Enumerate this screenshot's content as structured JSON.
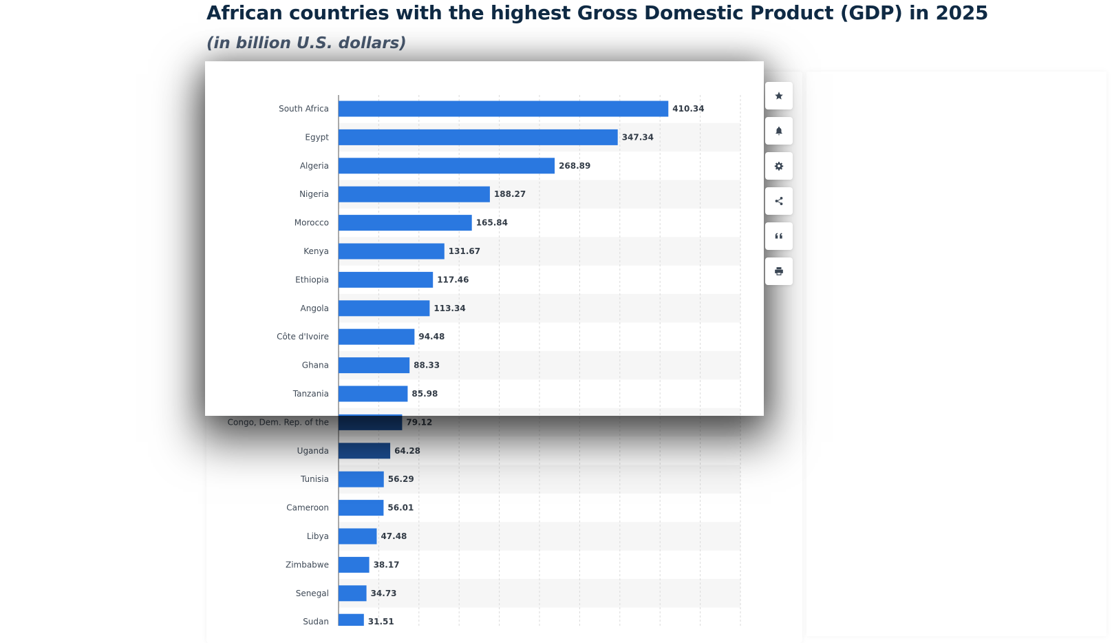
{
  "header": {
    "title": "African countries with the highest Gross Domestic Product (GDP) in 2025",
    "subtitle": "(in billion U.S. dollars)"
  },
  "toolbar": [
    {
      "name": "star-icon",
      "label": "favorite"
    },
    {
      "name": "bell-icon",
      "label": "notification"
    },
    {
      "name": "gear-icon",
      "label": "settings"
    },
    {
      "name": "share-icon",
      "label": "share"
    },
    {
      "name": "quote-icon",
      "label": "cite"
    },
    {
      "name": "print-icon",
      "label": "print"
    }
  ],
  "colors": {
    "bar": "#2a78e0",
    "bar_dark": "#1d4f95",
    "band": "#f6f6f6",
    "grid": "#d9d9d9"
  },
  "chart_data": {
    "type": "bar",
    "orientation": "horizontal",
    "categories": [
      "South Africa",
      "Egypt",
      "Algeria",
      "Nigeria",
      "Morocco",
      "Kenya",
      "Ethiopia",
      "Angola",
      "Côte d'Ivoire",
      "Ghana",
      "Tanzania",
      "Congo, Dem. Rep. of the",
      "Uganda",
      "Tunisia",
      "Cameroon",
      "Libya",
      "Zimbabwe",
      "Senegal",
      "Sudan"
    ],
    "values": [
      410.34,
      347.34,
      268.89,
      188.27,
      165.84,
      131.67,
      117.46,
      113.34,
      94.48,
      88.33,
      85.98,
      79.12,
      64.28,
      56.29,
      56.01,
      47.48,
      38.17,
      34.73,
      31.51
    ],
    "xlim": [
      0,
      500
    ],
    "grid": true,
    "value_labels": true
  }
}
